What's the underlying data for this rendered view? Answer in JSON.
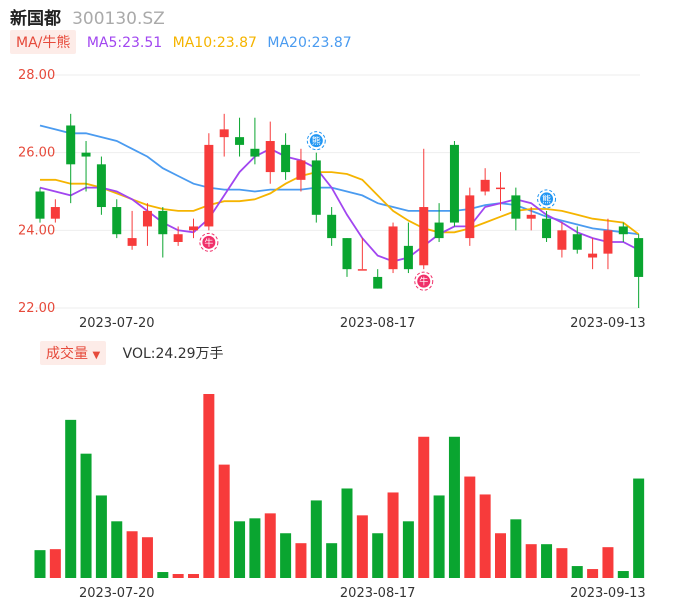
{
  "header": {
    "name": "新国都",
    "code": "300130.SZ"
  },
  "ma_legend": {
    "tag": "MA/牛熊",
    "ma5": "MA5:23.51",
    "ma10": "MA10:23.87",
    "ma20": "MA20:23.87"
  },
  "volume_legend": {
    "tag": "成交量",
    "value": "VOL:24.29万手"
  },
  "colors": {
    "up": "#f73b3b",
    "down": "#0aa530",
    "ma5": "#a146f0",
    "ma10": "#f5b400",
    "ma20": "#4a9bf0"
  },
  "chart_data": [
    {
      "type": "candlestick",
      "y_ticks": [
        "28.00",
        "26.00",
        "24.00",
        "22.00"
      ],
      "ylim": [
        22.0,
        28.0
      ],
      "x_tick_labels": [
        "2023-07-20",
        "2023-08-17",
        "2023-09-13"
      ],
      "x_tick_indices": [
        5,
        22,
        37
      ],
      "markers": [
        {
          "index": 11,
          "icon": "bull-icon",
          "glyph": "牛"
        },
        {
          "index": 18,
          "icon": "bear-icon",
          "glyph": "熊"
        },
        {
          "index": 25,
          "icon": "bull-icon",
          "glyph": "牛"
        },
        {
          "index": 33,
          "icon": "bear-icon",
          "glyph": "熊"
        }
      ],
      "candles": [
        {
          "o": 25.0,
          "c": 24.3,
          "h": 25.1,
          "l": 24.2
        },
        {
          "o": 24.3,
          "c": 24.6,
          "h": 24.8,
          "l": 24.2
        },
        {
          "o": 26.7,
          "c": 25.7,
          "h": 27.0,
          "l": 24.7
        },
        {
          "o": 26.0,
          "c": 25.9,
          "h": 26.3,
          "l": 25.0
        },
        {
          "o": 25.7,
          "c": 24.6,
          "h": 25.9,
          "l": 24.4
        },
        {
          "o": 24.6,
          "c": 23.9,
          "h": 24.8,
          "l": 23.8
        },
        {
          "o": 23.6,
          "c": 23.8,
          "h": 24.5,
          "l": 23.5
        },
        {
          "o": 24.1,
          "c": 24.5,
          "h": 24.7,
          "l": 23.6
        },
        {
          "o": 24.5,
          "c": 23.9,
          "h": 24.6,
          "l": 23.3
        },
        {
          "o": 23.7,
          "c": 23.9,
          "h": 24.1,
          "l": 23.6
        },
        {
          "o": 24.0,
          "c": 24.1,
          "h": 24.3,
          "l": 23.8
        },
        {
          "o": 24.1,
          "c": 26.2,
          "h": 26.5,
          "l": 24.0
        },
        {
          "o": 26.4,
          "c": 26.6,
          "h": 27.0,
          "l": 25.9
        },
        {
          "o": 26.4,
          "c": 26.2,
          "h": 26.9,
          "l": 25.9
        },
        {
          "o": 26.1,
          "c": 25.9,
          "h": 26.9,
          "l": 25.7
        },
        {
          "o": 25.5,
          "c": 26.3,
          "h": 26.8,
          "l": 25.2
        },
        {
          "o": 26.2,
          "c": 25.5,
          "h": 26.5,
          "l": 25.3
        },
        {
          "o": 25.3,
          "c": 25.8,
          "h": 26.1,
          "l": 25.0
        },
        {
          "o": 25.8,
          "c": 24.4,
          "h": 26.0,
          "l": 24.2
        },
        {
          "o": 24.4,
          "c": 23.8,
          "h": 24.6,
          "l": 23.6
        },
        {
          "o": 23.8,
          "c": 23.0,
          "h": 23.8,
          "l": 22.8
        },
        {
          "o": 23.0,
          "c": 23.0,
          "h": 23.8,
          "l": 23.0
        },
        {
          "o": 22.8,
          "c": 22.5,
          "h": 23.0,
          "l": 22.5
        },
        {
          "o": 23.0,
          "c": 24.1,
          "h": 24.2,
          "l": 22.9
        },
        {
          "o": 23.6,
          "c": 23.0,
          "h": 24.2,
          "l": 22.9
        },
        {
          "o": 23.1,
          "c": 24.6,
          "h": 26.1,
          "l": 23.0
        },
        {
          "o": 24.2,
          "c": 23.8,
          "h": 24.7,
          "l": 23.7
        },
        {
          "o": 26.2,
          "c": 24.2,
          "h": 26.3,
          "l": 24.1
        },
        {
          "o": 23.8,
          "c": 24.9,
          "h": 25.1,
          "l": 23.6
        },
        {
          "o": 25.0,
          "c": 25.3,
          "h": 25.6,
          "l": 24.9
        },
        {
          "o": 25.1,
          "c": 25.1,
          "h": 25.5,
          "l": 24.5
        },
        {
          "o": 24.9,
          "c": 24.3,
          "h": 25.1,
          "l": 24.0
        },
        {
          "o": 24.3,
          "c": 24.4,
          "h": 24.6,
          "l": 24.0
        },
        {
          "o": 24.3,
          "c": 23.8,
          "h": 24.5,
          "l": 23.7
        },
        {
          "o": 23.5,
          "c": 24.0,
          "h": 24.2,
          "l": 23.3
        },
        {
          "o": 23.9,
          "c": 23.5,
          "h": 24.1,
          "l": 23.4
        },
        {
          "o": 23.3,
          "c": 23.4,
          "h": 23.8,
          "l": 23.0
        },
        {
          "o": 23.4,
          "c": 24.0,
          "h": 24.3,
          "l": 23.0
        },
        {
          "o": 24.1,
          "c": 23.9,
          "h": 24.2,
          "l": 23.7
        },
        {
          "o": 23.8,
          "c": 22.8,
          "h": 23.9,
          "l": 22.0
        }
      ],
      "ma5": [
        25.1,
        25.0,
        24.9,
        25.1,
        25.1,
        25.0,
        24.8,
        24.5,
        24.2,
        24.0,
        23.95,
        24.3,
        24.9,
        25.5,
        25.9,
        26.1,
        25.9,
        25.8,
        25.6,
        25.1,
        24.4,
        23.8,
        23.35,
        23.2,
        23.3,
        23.6,
        23.9,
        24.1,
        24.1,
        24.6,
        24.7,
        24.8,
        24.7,
        24.4,
        24.2,
        23.95,
        23.8,
        23.7,
        23.7,
        23.5
      ],
      "ma10": [
        25.3,
        25.3,
        25.2,
        25.2,
        25.1,
        24.95,
        24.8,
        24.65,
        24.55,
        24.5,
        24.5,
        24.65,
        24.75,
        24.75,
        24.8,
        24.95,
        25.2,
        25.4,
        25.5,
        25.5,
        25.45,
        25.3,
        24.9,
        24.5,
        24.25,
        24.05,
        23.95,
        23.95,
        24.05,
        24.2,
        24.35,
        24.5,
        24.55,
        24.55,
        24.5,
        24.4,
        24.3,
        24.25,
        24.2,
        23.9
      ],
      "ma20": [
        26.7,
        26.6,
        26.5,
        26.5,
        26.4,
        26.3,
        26.1,
        25.9,
        25.6,
        25.4,
        25.2,
        25.1,
        25.05,
        25.05,
        25.0,
        25.05,
        25.05,
        25.05,
        25.1,
        25.1,
        25.0,
        24.9,
        24.7,
        24.6,
        24.5,
        24.5,
        24.5,
        24.5,
        24.55,
        24.65,
        24.7,
        24.65,
        24.5,
        24.35,
        24.25,
        24.15,
        24.05,
        24.0,
        23.95,
        23.9
      ]
    },
    {
      "type": "bar",
      "title": "成交量",
      "x_tick_labels": [
        "2023-07-20",
        "2023-08-17",
        "2023-09-13"
      ],
      "values": [
        28,
        29,
        159,
        125,
        83,
        57,
        47,
        41,
        6,
        4,
        4,
        185,
        114,
        57,
        60,
        65,
        45,
        35,
        78,
        35,
        90,
        63,
        45,
        86,
        57,
        142,
        83,
        142,
        102,
        84,
        45,
        59,
        34,
        34,
        30,
        12,
        9,
        31,
        7,
        100
      ],
      "vmax": 185
    }
  ]
}
